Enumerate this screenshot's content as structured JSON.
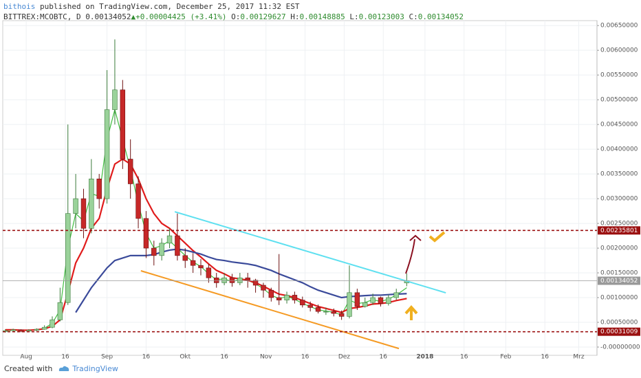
{
  "header": {
    "author": "bithois",
    "published": " published on TradingView.com, December 25, 2017 11:32 EST",
    "symbol": "BITTREX:MCOBTC, D",
    "last": "0.00134052",
    "change": "▲+0.00004425 (+3.41%)",
    "ohlc": [
      {
        "label": "O:",
        "value": "0.00129627"
      },
      {
        "label": "H:",
        "value": "0.00148885"
      },
      {
        "label": "L:",
        "value": "0.00123003"
      },
      {
        "label": "C:",
        "value": "0.00134052"
      }
    ]
  },
  "chart_data": {
    "type": "candlestick",
    "x": [
      "2017-07-24",
      "2017-07-27",
      "2017-07-30",
      "2017-08-02",
      "2017-08-05",
      "2017-08-08",
      "2017-08-11",
      "2017-08-14",
      "2017-08-17",
      "2017-08-20",
      "2017-08-23",
      "2017-08-26",
      "2017-08-29",
      "2017-09-01",
      "2017-09-04",
      "2017-09-07",
      "2017-09-10",
      "2017-09-13",
      "2017-09-16",
      "2017-09-19",
      "2017-09-22",
      "2017-09-25",
      "2017-09-28",
      "2017-10-01",
      "2017-10-04",
      "2017-10-07",
      "2017-10-10",
      "2017-10-13",
      "2017-10-16",
      "2017-10-19",
      "2017-10-22",
      "2017-10-25",
      "2017-10-28",
      "2017-10-31",
      "2017-11-03",
      "2017-11-06",
      "2017-11-09",
      "2017-11-12",
      "2017-11-15",
      "2017-11-18",
      "2017-11-21",
      "2017-11-24",
      "2017-11-27",
      "2017-11-30",
      "2017-12-03",
      "2017-12-06",
      "2017-12-09",
      "2017-12-12",
      "2017-12-15",
      "2017-12-18",
      "2017-12-21",
      "2017-12-25"
    ],
    "open": [
      0.00032,
      0.00033,
      0.00035,
      0.00032,
      0.00034,
      0.00036,
      0.0004,
      0.00055,
      0.0009,
      0.0027,
      0.003,
      0.0024,
      0.0034,
      0.003,
      0.0048,
      0.0052,
      0.0038,
      0.0033,
      0.0026,
      0.002,
      0.00185,
      0.0021,
      0.00225,
      0.00185,
      0.00175,
      0.00165,
      0.0016,
      0.0014,
      0.0013,
      0.0014,
      0.0013,
      0.0014,
      0.00135,
      0.00125,
      0.00115,
      0.001,
      0.00095,
      0.00105,
      0.00095,
      0.00085,
      0.0008,
      0.00072,
      0.00072,
      0.00068,
      0.00062,
      0.0011,
      0.00082,
      0.0009,
      0.001,
      0.00088,
      0.001,
      0.00129627
    ],
    "high": [
      0.00036,
      0.00037,
      0.00036,
      0.00036,
      0.00038,
      0.00044,
      0.00062,
      0.0012,
      0.0045,
      0.0035,
      0.0032,
      0.0038,
      0.0035,
      0.0056,
      0.00622,
      0.0054,
      0.0042,
      0.00345,
      0.00275,
      0.00215,
      0.0022,
      0.0024,
      0.0027,
      0.002,
      0.0019,
      0.00178,
      0.00168,
      0.0015,
      0.0015,
      0.00148,
      0.0015,
      0.0015,
      0.00138,
      0.0013,
      0.0012,
      0.00188,
      0.00112,
      0.00112,
      0.00102,
      0.00092,
      0.00086,
      0.0008,
      0.00078,
      0.00074,
      0.00165,
      0.00118,
      0.001,
      0.00108,
      0.00102,
      0.00106,
      0.00118,
      0.00148885
    ],
    "low": [
      0.00029,
      0.0003,
      0.0003,
      0.00031,
      0.00032,
      0.00035,
      0.00038,
      0.00052,
      0.00085,
      0.0024,
      0.0022,
      0.0023,
      0.0028,
      0.0029,
      0.0045,
      0.0036,
      0.003,
      0.0024,
      0.0018,
      0.00165,
      0.00175,
      0.002,
      0.00175,
      0.0016,
      0.0015,
      0.00145,
      0.0013,
      0.0012,
      0.00125,
      0.00122,
      0.00125,
      0.0012,
      0.0011,
      0.001,
      0.00092,
      0.00085,
      0.00088,
      0.00088,
      0.0008,
      0.00072,
      0.00068,
      0.00065,
      0.00062,
      0.00055,
      0.00058,
      0.00075,
      0.0008,
      0.00085,
      0.00082,
      0.00084,
      0.00095,
      0.00123003
    ],
    "close": [
      0.00033,
      0.00035,
      0.00032,
      0.00034,
      0.00036,
      0.0004,
      0.00055,
      0.0009,
      0.0027,
      0.003,
      0.0024,
      0.0034,
      0.003,
      0.0048,
      0.0052,
      0.0038,
      0.0033,
      0.0026,
      0.002,
      0.00185,
      0.0021,
      0.00225,
      0.00185,
      0.00175,
      0.00165,
      0.0016,
      0.0014,
      0.0013,
      0.0014,
      0.0013,
      0.0014,
      0.00135,
      0.00125,
      0.00115,
      0.001,
      0.00095,
      0.00105,
      0.00095,
      0.00085,
      0.0008,
      0.00072,
      0.00072,
      0.00068,
      0.00062,
      0.0011,
      0.00082,
      0.0009,
      0.001,
      0.00088,
      0.001,
      0.0011,
      0.00134052
    ],
    "up_color": "#9ad29a",
    "down_color": "#c62828",
    "moving_averages": [
      {
        "color": "#3fbf3f",
        "values": [
          0.00033,
          0.00034,
          0.00033,
          0.00034,
          0.00035,
          0.00038,
          0.00048,
          0.00075,
          0.002,
          0.0027,
          0.00255,
          0.0031,
          0.00305,
          0.0042,
          0.0048,
          0.0042,
          0.0036,
          0.0029,
          0.0023,
          0.002,
          0.00205,
          0.00215,
          0.002,
          0.00185,
          0.00172,
          0.00163,
          0.00148,
          0.00136,
          0.00138,
          0.00132,
          0.00137,
          0.00135,
          0.00128,
          0.00118,
          0.00105,
          0.00098,
          0.00102,
          0.00097,
          0.00088,
          0.00082,
          0.00075,
          0.00073,
          0.0007,
          0.00065,
          0.00095,
          0.00088,
          0.0009,
          0.00096,
          0.00092,
          0.00097,
          0.00105,
          0.0012
        ]
      },
      {
        "color": "#e01b1b",
        "values": [
          0.00035,
          0.00035,
          0.00034,
          0.00034,
          0.00035,
          0.00037,
          0.00042,
          0.00055,
          0.0011,
          0.0017,
          0.002,
          0.0024,
          0.0026,
          0.0032,
          0.0037,
          0.0038,
          0.0037,
          0.0034,
          0.003,
          0.0027,
          0.0025,
          0.0024,
          0.00225,
          0.0021,
          0.00195,
          0.00182,
          0.00168,
          0.00155,
          0.00148,
          0.0014,
          0.00138,
          0.00135,
          0.0013,
          0.00123,
          0.00115,
          0.00107,
          0.00104,
          0.001,
          0.00094,
          0.00088,
          0.00082,
          0.00078,
          0.00074,
          0.0007,
          0.00078,
          0.0008,
          0.00083,
          0.00087,
          0.00088,
          0.0009,
          0.00094,
          0.00098
        ]
      },
      {
        "color": "#3a4a9a",
        "values": [
          null,
          null,
          null,
          null,
          null,
          null,
          null,
          null,
          null,
          0.0007,
          0.00095,
          0.0012,
          0.0014,
          0.0016,
          0.00175,
          0.0018,
          0.00185,
          0.00185,
          0.00185,
          0.00187,
          0.00192,
          0.00196,
          0.00198,
          0.00196,
          0.00192,
          0.00188,
          0.00182,
          0.00177,
          0.00175,
          0.00172,
          0.0017,
          0.00168,
          0.00165,
          0.0016,
          0.00155,
          0.00148,
          0.00142,
          0.00136,
          0.0013,
          0.00122,
          0.00115,
          0.0011,
          0.00105,
          0.001,
          0.00102,
          0.00103,
          0.00104,
          0.00105,
          0.00105,
          0.00106,
          0.00107,
          0.00108
        ]
      }
    ],
    "trendlines": [
      {
        "color": "#5ee0f0",
        "points": [
          {
            "x": "2017-09-27",
            "y": 0.002736
          },
          {
            "x": "2018-01-09",
            "y": 0.001097
          }
        ]
      },
      {
        "color": "#f59a23",
        "points": [
          {
            "x": "2017-09-14",
            "y": 0.001542
          },
          {
            "x": "2017-12-22",
            "y": -3e-05
          }
        ]
      }
    ],
    "horizontal_lines": [
      {
        "value": 0.00235801,
        "label": "0.00235801",
        "color": "#9b1010"
      },
      {
        "value": 0.00031009,
        "label": "0.00031009",
        "color": "#9b1010"
      }
    ],
    "last_price": {
      "value": 0.00134052,
      "label": "0.00134052",
      "color": "#999999"
    },
    "xlim": [
      "2017-07-23",
      "2018-03-08"
    ],
    "xticks": [
      {
        "value": "2017-08-01",
        "label": "Aug"
      },
      {
        "value": "2017-08-16",
        "label": "16"
      },
      {
        "value": "2017-09-01",
        "label": "Sep"
      },
      {
        "value": "2017-09-16",
        "label": "16"
      },
      {
        "value": "2017-10-01",
        "label": "Okt"
      },
      {
        "value": "2017-10-16",
        "label": "16"
      },
      {
        "value": "2017-11-01",
        "label": "Nov"
      },
      {
        "value": "2017-11-16",
        "label": "16"
      },
      {
        "value": "2017-12-01",
        "label": "Dez"
      },
      {
        "value": "2017-12-16",
        "label": "16"
      },
      {
        "value": "2018-01-01",
        "label": "2018"
      },
      {
        "value": "2018-01-16",
        "label": "16"
      },
      {
        "value": "2018-02-01",
        "label": "Feb"
      },
      {
        "value": "2018-02-16",
        "label": "16"
      },
      {
        "value": "2018-03-01",
        "label": "Mrz"
      }
    ],
    "ylim": [
      -0.000167,
      0.0066
    ],
    "yticks": [
      {
        "value": 0,
        "label": "-0.00000000"
      },
      {
        "value": 0.0005,
        "label": "0.00050000"
      },
      {
        "value": 0.001,
        "label": "0.00100000"
      },
      {
        "value": 0.0015,
        "label": "0.00150000"
      },
      {
        "value": 0.002,
        "label": "0.00200000"
      },
      {
        "value": 0.0025,
        "label": "0.00250000"
      },
      {
        "value": 0.003,
        "label": "0.00300000"
      },
      {
        "value": 0.0035,
        "label": "0.00350000"
      },
      {
        "value": 0.004,
        "label": "0.00400000"
      },
      {
        "value": 0.0045,
        "label": "0.00450000"
      },
      {
        "value": 0.005,
        "label": "0.00500000"
      },
      {
        "value": 0.0055,
        "label": "0.00550000"
      },
      {
        "value": 0.006,
        "label": "0.00600000"
      },
      {
        "value": 0.0065,
        "label": "0.00650000"
      }
    ],
    "grid": true
  },
  "footer": {
    "text": "Created with",
    "brand": "TradingView"
  }
}
